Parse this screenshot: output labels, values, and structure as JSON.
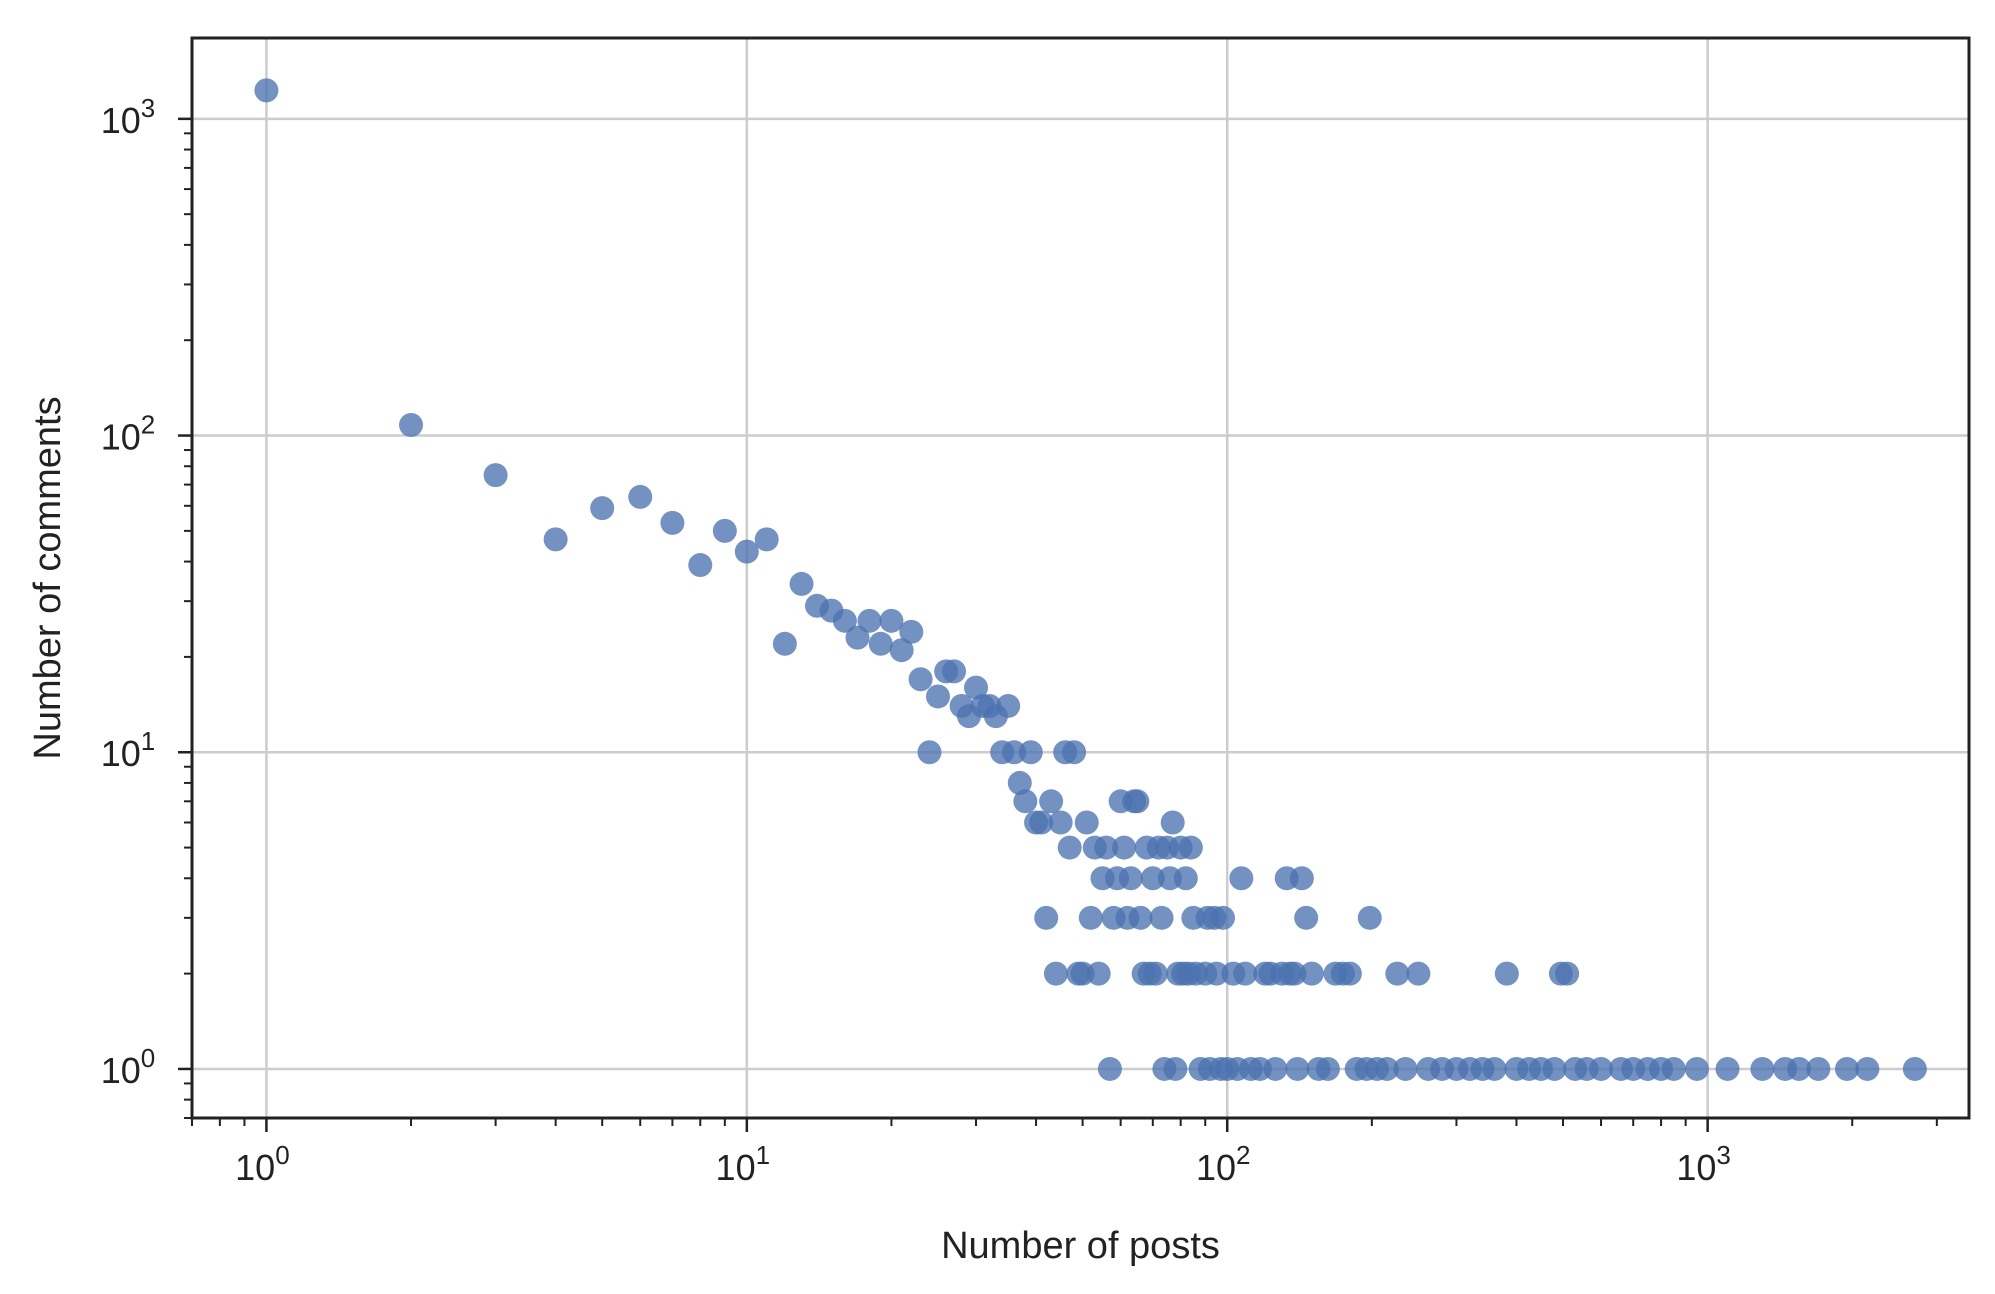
{
  "chart_data": {
    "type": "scatter",
    "title": "",
    "xlabel": "Number of posts",
    "ylabel": "Number of comments",
    "xscale": "log",
    "yscale": "log",
    "xlim": [
      0.7,
      3500
    ],
    "ylim": [
      0.7,
      1800
    ],
    "grid": true,
    "marker_color": "#4c72b0",
    "x_ticks": [
      {
        "base": "10",
        "exp": "0"
      },
      {
        "base": "10",
        "exp": "1"
      },
      {
        "base": "10",
        "exp": "2"
      },
      {
        "base": "10",
        "exp": "3"
      }
    ],
    "y_ticks": [
      {
        "base": "10",
        "exp": "0"
      },
      {
        "base": "10",
        "exp": "1"
      },
      {
        "base": "10",
        "exp": "2"
      },
      {
        "base": "10",
        "exp": "3"
      }
    ],
    "points": [
      [
        1,
        1230
      ],
      [
        2,
        108
      ],
      [
        3,
        75
      ],
      [
        4,
        47
      ],
      [
        5,
        59
      ],
      [
        6,
        64
      ],
      [
        7,
        53
      ],
      [
        8,
        39
      ],
      [
        9,
        50
      ],
      [
        10,
        43
      ],
      [
        11,
        47
      ],
      [
        12,
        22
      ],
      [
        13,
        34
      ],
      [
        14,
        29
      ],
      [
        15,
        28
      ],
      [
        16,
        26
      ],
      [
        17,
        23
      ],
      [
        18,
        26
      ],
      [
        19,
        22
      ],
      [
        20,
        26
      ],
      [
        21,
        21
      ],
      [
        22,
        24
      ],
      [
        23,
        17
      ],
      [
        24,
        10
      ],
      [
        25,
        15
      ],
      [
        26,
        18
      ],
      [
        27,
        18
      ],
      [
        28,
        14
      ],
      [
        29,
        13
      ],
      [
        30,
        16
      ],
      [
        31,
        14
      ],
      [
        32,
        14
      ],
      [
        33,
        13
      ],
      [
        34,
        10
      ],
      [
        35,
        14
      ],
      [
        36,
        10
      ],
      [
        37,
        8
      ],
      [
        38,
        7
      ],
      [
        39,
        10
      ],
      [
        40,
        6
      ],
      [
        41,
        6
      ],
      [
        42,
        3
      ],
      [
        43,
        7
      ],
      [
        44,
        2
      ],
      [
        45,
        6
      ],
      [
        46,
        10
      ],
      [
        47,
        5
      ],
      [
        48,
        10
      ],
      [
        49,
        2
      ],
      [
        50,
        2
      ],
      [
        51,
        6
      ],
      [
        52,
        3
      ],
      [
        53,
        5
      ],
      [
        54,
        2
      ],
      [
        55,
        4
      ],
      [
        56,
        5
      ],
      [
        57,
        1
      ],
      [
        58,
        3
      ],
      [
        59,
        4
      ],
      [
        60,
        7
      ],
      [
        61,
        5
      ],
      [
        62,
        3
      ],
      [
        63,
        4
      ],
      [
        64,
        7
      ],
      [
        65,
        7
      ],
      [
        66,
        3
      ],
      [
        67,
        2
      ],
      [
        68,
        5
      ],
      [
        69,
        2
      ],
      [
        70,
        4
      ],
      [
        71,
        2
      ],
      [
        72,
        5
      ],
      [
        73,
        3
      ],
      [
        74,
        1
      ],
      [
        75,
        5
      ],
      [
        76,
        4
      ],
      [
        77,
        6
      ],
      [
        78,
        1
      ],
      [
        79,
        2
      ],
      [
        80,
        5
      ],
      [
        81,
        2
      ],
      [
        82,
        4
      ],
      [
        83,
        2
      ],
      [
        84,
        5
      ],
      [
        85,
        3
      ],
      [
        86,
        2
      ],
      [
        88,
        1
      ],
      [
        90,
        2
      ],
      [
        91,
        3
      ],
      [
        92,
        1
      ],
      [
        94,
        3
      ],
      [
        95,
        2
      ],
      [
        97,
        1
      ],
      [
        98,
        3
      ],
      [
        100,
        1
      ],
      [
        103,
        2
      ],
      [
        105,
        1
      ],
      [
        107,
        4
      ],
      [
        109,
        2
      ],
      [
        112,
        1
      ],
      [
        117,
        1
      ],
      [
        120,
        2
      ],
      [
        123,
        2
      ],
      [
        126,
        1
      ],
      [
        130,
        2
      ],
      [
        133,
        4
      ],
      [
        135,
        2
      ],
      [
        138,
        2
      ],
      [
        140,
        1
      ],
      [
        143,
        4
      ],
      [
        146,
        3
      ],
      [
        150,
        2
      ],
      [
        155,
        1
      ],
      [
        162,
        1
      ],
      [
        168,
        2
      ],
      [
        174,
        2
      ],
      [
        180,
        2
      ],
      [
        186,
        1
      ],
      [
        195,
        1
      ],
      [
        198,
        3
      ],
      [
        205,
        1
      ],
      [
        215,
        1
      ],
      [
        226,
        2
      ],
      [
        235,
        1
      ],
      [
        250,
        2
      ],
      [
        262,
        1
      ],
      [
        280,
        1
      ],
      [
        300,
        1
      ],
      [
        320,
        1
      ],
      [
        340,
        1
      ],
      [
        360,
        1
      ],
      [
        382,
        2
      ],
      [
        400,
        1
      ],
      [
        425,
        1
      ],
      [
        450,
        1
      ],
      [
        480,
        1
      ],
      [
        495,
        2
      ],
      [
        510,
        2
      ],
      [
        530,
        1
      ],
      [
        560,
        1
      ],
      [
        600,
        1
      ],
      [
        660,
        1
      ],
      [
        700,
        1
      ],
      [
        750,
        1
      ],
      [
        800,
        1
      ],
      [
        850,
        1
      ],
      [
        950,
        1
      ],
      [
        1100,
        1
      ],
      [
        1300,
        1
      ],
      [
        1450,
        1
      ],
      [
        1550,
        1
      ],
      [
        1700,
        1
      ],
      [
        1950,
        1
      ],
      [
        2150,
        1
      ],
      [
        2700,
        1
      ]
    ]
  }
}
